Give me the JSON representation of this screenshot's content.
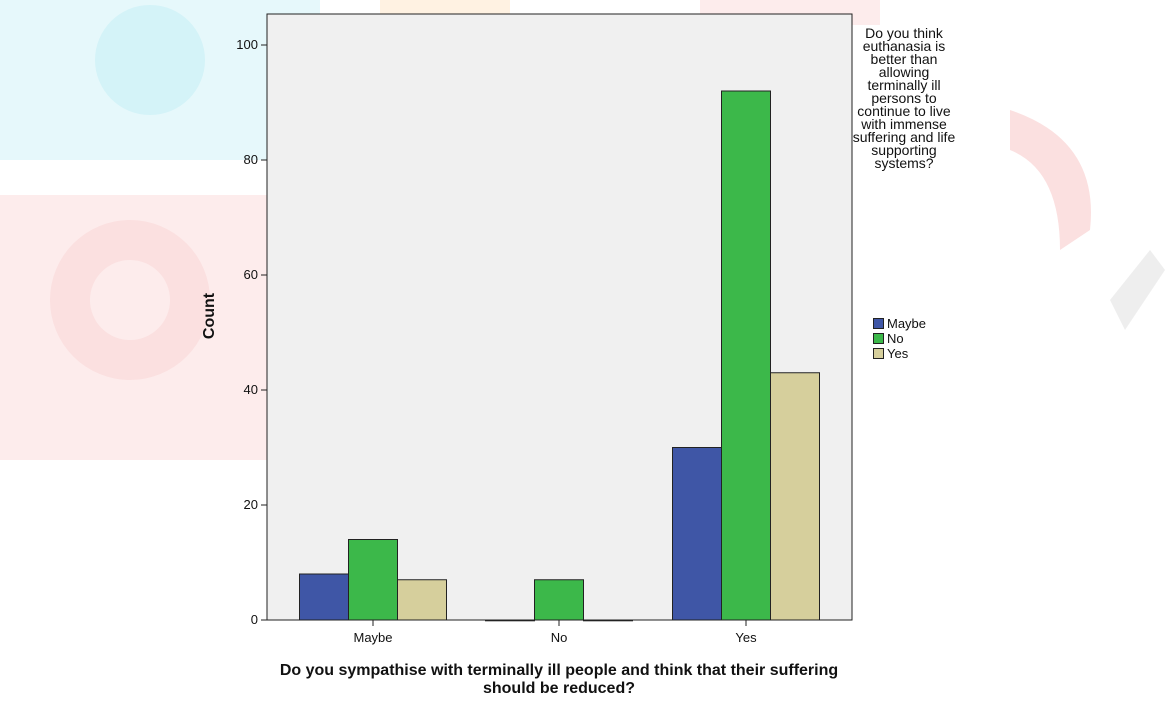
{
  "chart_data": {
    "type": "bar",
    "categories": [
      "Maybe",
      "No",
      "Yes"
    ],
    "series": [
      {
        "name": "Maybe",
        "values": [
          8,
          0,
          30
        ],
        "color": "#3f56a6"
      },
      {
        "name": "No",
        "values": [
          14,
          7,
          92
        ],
        "color": "#3cb84a"
      },
      {
        "name": "Yes",
        "values": [
          7,
          0,
          43
        ],
        "color": "#d6cf9c"
      }
    ],
    "title": "",
    "xlabel": "Do you sympathise with terminally ill people and think that their suffering should be reduced?",
    "ylabel": "Count",
    "ylim": [
      0,
      100
    ],
    "yticks": [
      0,
      20,
      40,
      60,
      80,
      100
    ],
    "legend_title": "Do you think euthanasia is better than allowing terminally ill persons to continue to live with immense suffering and life supporting systems?",
    "legend_placement": "right",
    "plot_background": "#f0f0f0",
    "grid": false
  }
}
